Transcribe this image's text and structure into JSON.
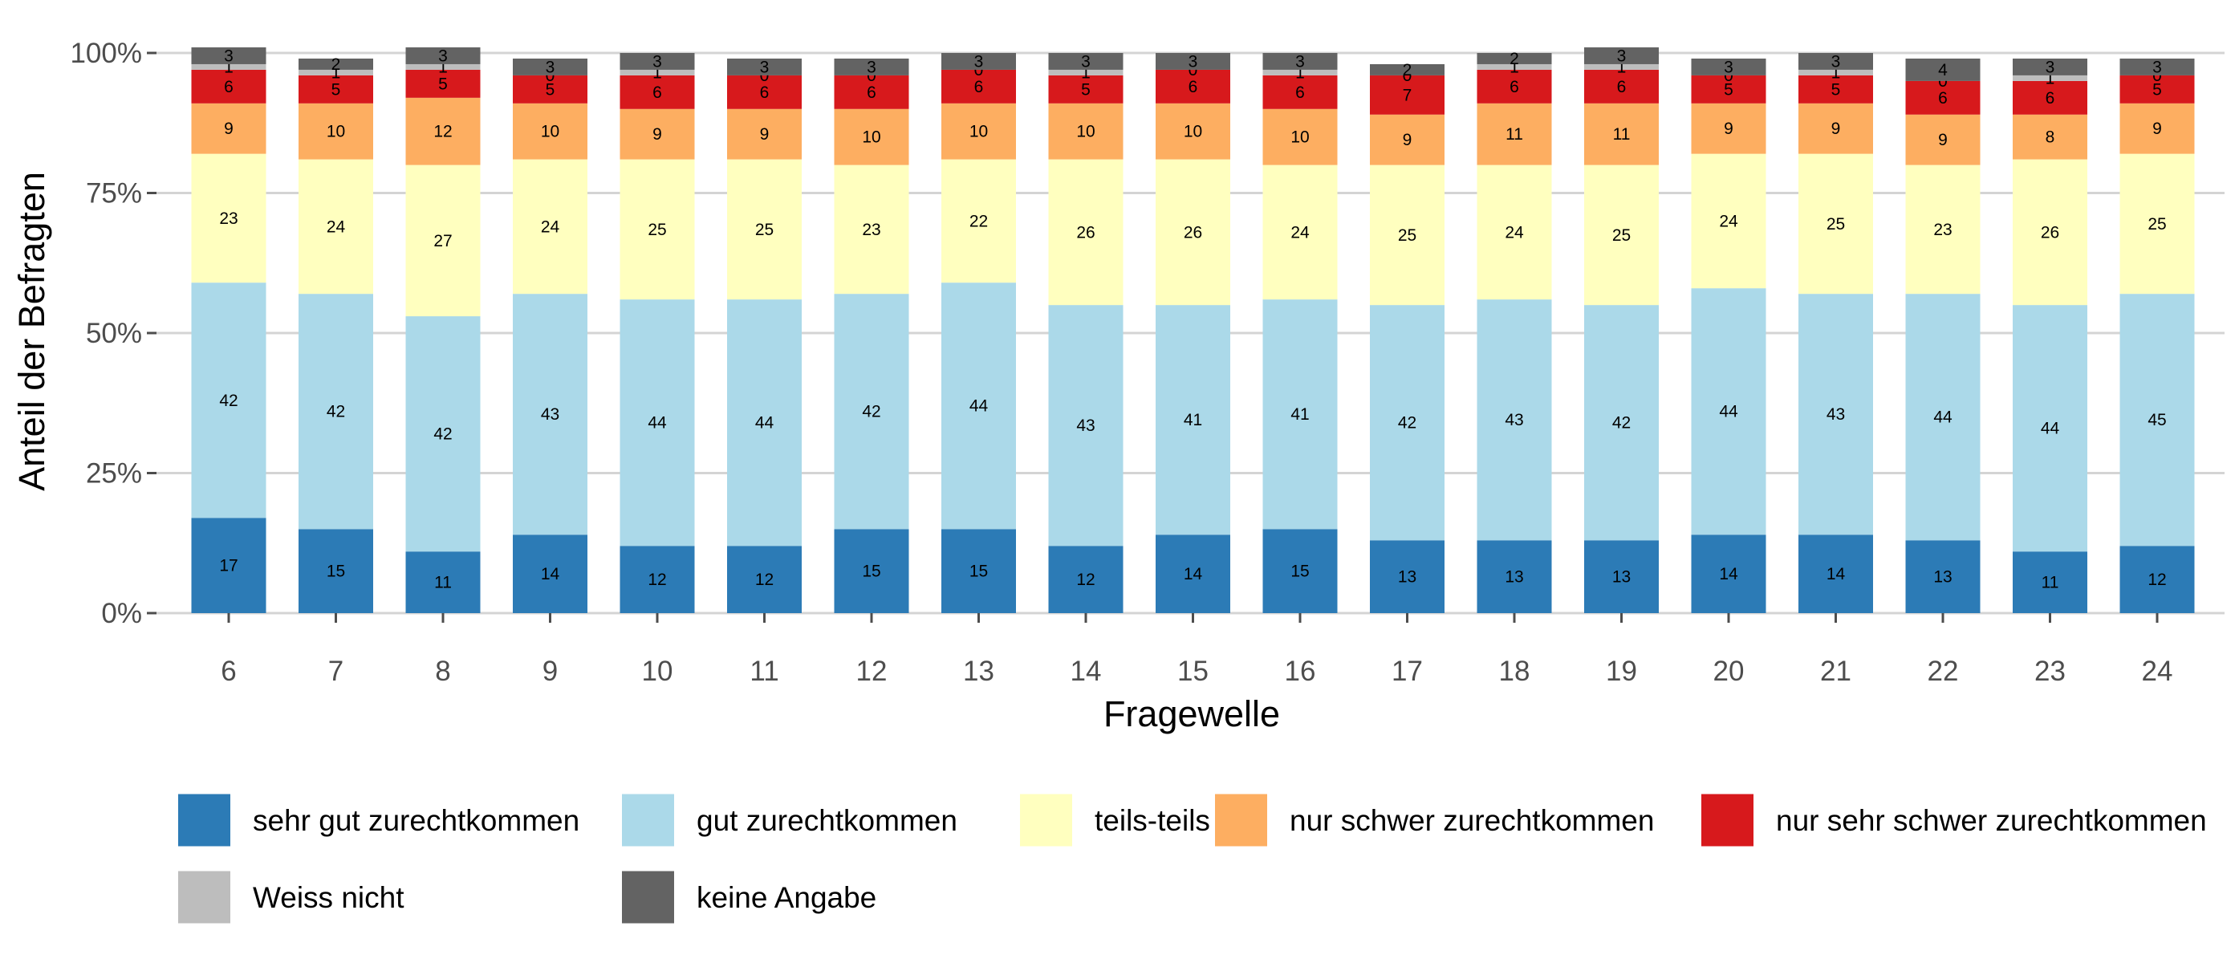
{
  "chart_data": {
    "type": "bar",
    "stacked": true,
    "xlabel": "Fragewelle",
    "ylabel": "Anteil der Befragten",
    "ylim": [
      0,
      100
    ],
    "y_ticks": [
      {
        "value": 0,
        "label": "0%"
      },
      {
        "value": 25,
        "label": "25%"
      },
      {
        "value": 50,
        "label": "50%"
      },
      {
        "value": 75,
        "label": "75%"
      },
      {
        "value": 100,
        "label": "100%"
      }
    ],
    "grid": true,
    "legend_position": "bottom",
    "categories": [
      "6",
      "7",
      "8",
      "9",
      "10",
      "11",
      "12",
      "13",
      "14",
      "15",
      "16",
      "17",
      "18",
      "19",
      "20",
      "21",
      "22",
      "23",
      "24"
    ],
    "series": [
      {
        "name": "sehr gut zurechtkommen",
        "color": "#2c7bb6",
        "values": [
          17,
          15,
          11,
          14,
          12,
          12,
          15,
          15,
          12,
          14,
          15,
          13,
          13,
          13,
          14,
          14,
          13,
          11,
          12
        ]
      },
      {
        "name": "gut zurechtkommen",
        "color": "#abd9e9",
        "values": [
          42,
          42,
          42,
          43,
          44,
          44,
          42,
          44,
          43,
          41,
          41,
          42,
          43,
          42,
          44,
          43,
          44,
          44,
          45
        ]
      },
      {
        "name": "teils-teils",
        "color": "#ffffbf",
        "values": [
          23,
          24,
          27,
          24,
          25,
          25,
          23,
          22,
          26,
          26,
          24,
          25,
          24,
          25,
          24,
          25,
          23,
          26,
          25
        ]
      },
      {
        "name": "nur schwer zurechtkommen",
        "color": "#fdae61",
        "values": [
          9,
          10,
          12,
          10,
          9,
          9,
          10,
          10,
          10,
          10,
          10,
          9,
          11,
          11,
          9,
          9,
          9,
          8,
          9
        ]
      },
      {
        "name": "nur sehr schwer zurechtkommen",
        "color": "#d7191c",
        "values": [
          6,
          5,
          5,
          5,
          6,
          6,
          6,
          6,
          5,
          6,
          6,
          7,
          6,
          6,
          5,
          5,
          6,
          6,
          5
        ]
      },
      {
        "name": "Weiss nicht",
        "color": "#bdbdbd",
        "values": [
          1,
          1,
          1,
          0,
          1,
          0,
          0,
          0,
          1,
          0,
          1,
          0,
          1,
          1,
          0,
          1,
          0,
          1,
          0
        ]
      },
      {
        "name": "keine Angabe",
        "color": "#636363",
        "values": [
          3,
          2,
          3,
          3,
          3,
          3,
          3,
          3,
          3,
          3,
          3,
          2,
          2,
          3,
          3,
          3,
          4,
          3,
          3
        ]
      }
    ]
  }
}
